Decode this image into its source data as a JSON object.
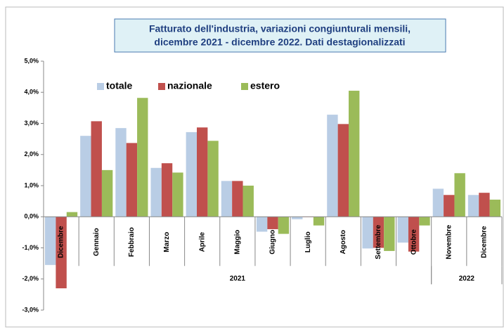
{
  "chart_data": {
    "type": "bar",
    "title": [
      "Fatturato dell'industria, variazioni congiunturali mensili,",
      "dicembre 2021 - dicembre  2022. Dati destagionalizzati"
    ],
    "categories": [
      "Dicembre",
      "Gennaio",
      "Febbraio",
      "Marzo",
      "Aprile",
      "Maggio",
      "Giugno",
      "Luglio",
      "Agosto",
      "Settembre",
      "Ottobre",
      "Novembre",
      "Dicembre"
    ],
    "groups": [
      {
        "label": "2021",
        "span": [
          0,
          10
        ]
      },
      {
        "label": "2022",
        "span": [
          11,
          12
        ]
      }
    ],
    "series": [
      {
        "name": "totale",
        "color": "#b9cde5",
        "values": [
          -1.55,
          2.6,
          2.85,
          1.57,
          2.72,
          1.15,
          -0.48,
          -0.08,
          3.28,
          -1.02,
          -0.83,
          0.9,
          0.7
        ]
      },
      {
        "name": "nazionale",
        "color": "#c0504d",
        "values": [
          -2.3,
          3.07,
          2.37,
          1.72,
          2.87,
          1.15,
          -0.4,
          0,
          2.98,
          -1.0,
          -1.12,
          0.7,
          0.77
        ]
      },
      {
        "name": "estero",
        "color": "#9bbb59",
        "values": [
          0.15,
          1.5,
          3.82,
          1.42,
          2.44,
          1.0,
          -0.55,
          -0.28,
          4.05,
          -1.1,
          -0.28,
          1.4,
          0.55
        ]
      }
    ],
    "ylim": [
      -3,
      5
    ],
    "yticks": [
      {
        "value": -3,
        "label": "-3,0%"
      },
      {
        "value": -2,
        "label": "-2,0%"
      },
      {
        "value": -1,
        "label": "-1,0%"
      },
      {
        "value": 0,
        "label": "0,0%"
      },
      {
        "value": 1,
        "label": "1,0%"
      },
      {
        "value": 2,
        "label": "2,0%"
      },
      {
        "value": 3,
        "label": "3,0%"
      },
      {
        "value": 4,
        "label": "4,0%"
      },
      {
        "value": 5,
        "label": "5,0%"
      }
    ],
    "legend": "top-left"
  }
}
